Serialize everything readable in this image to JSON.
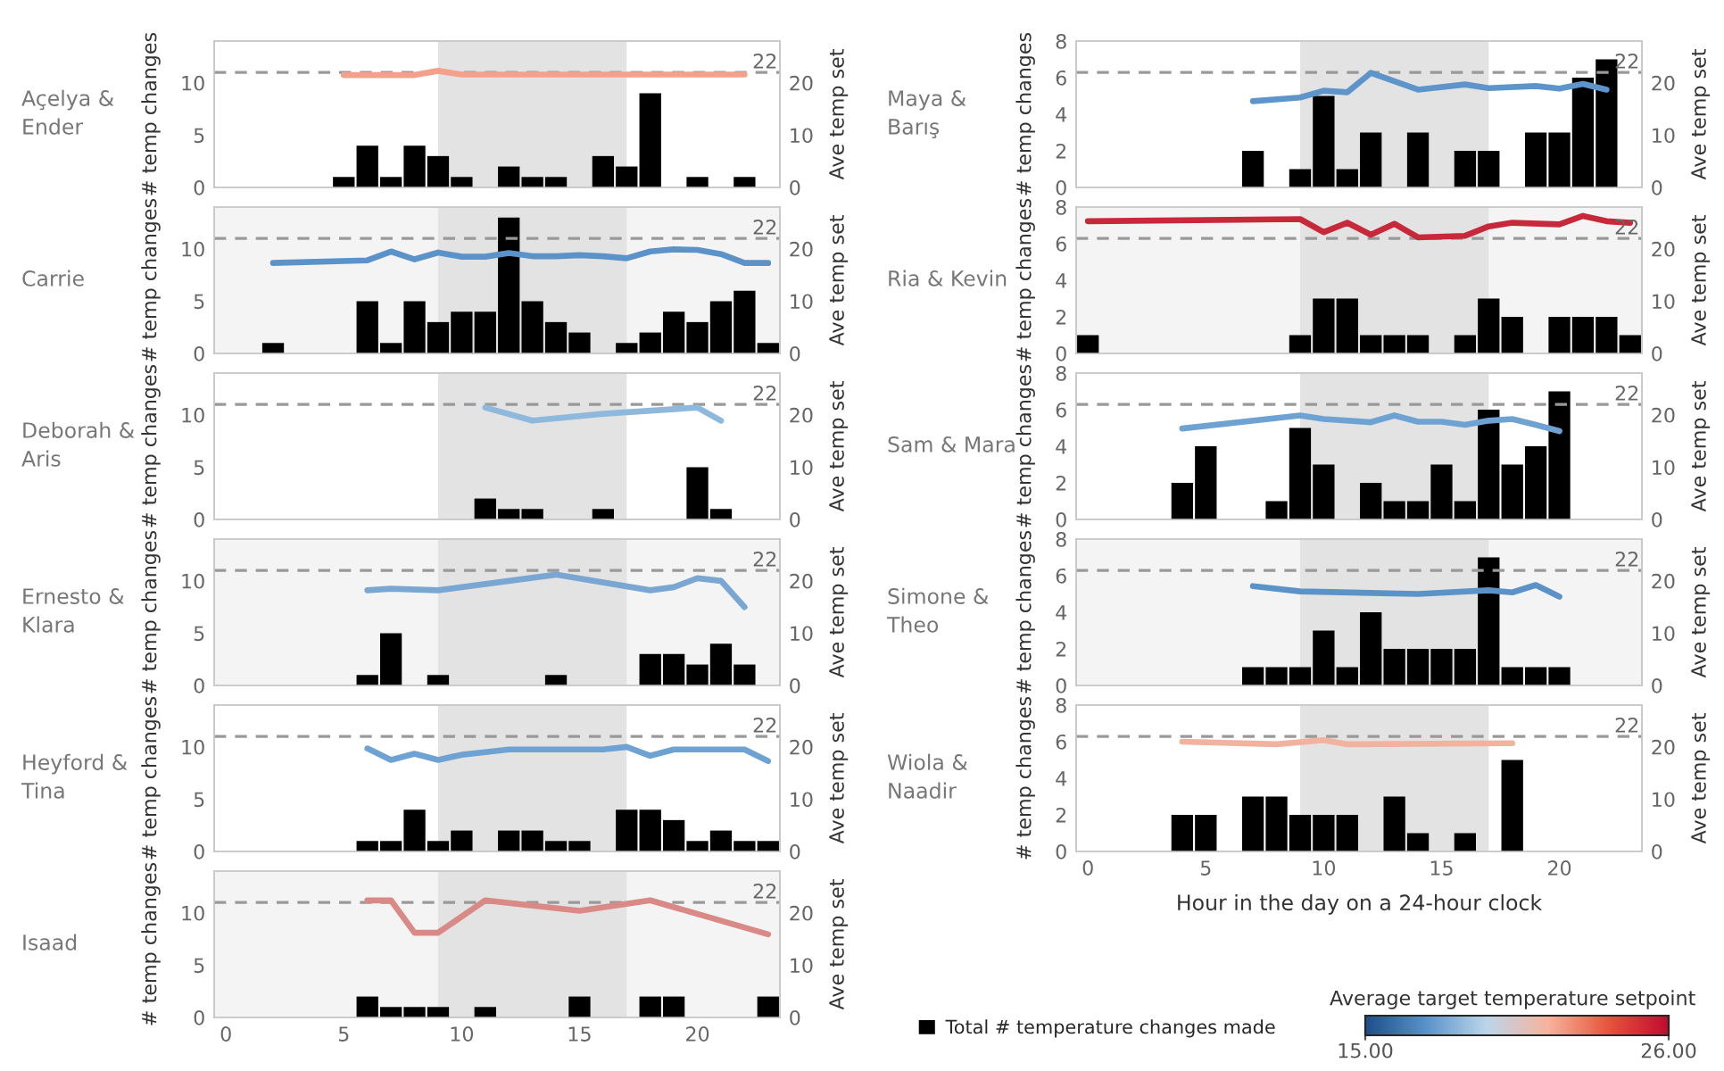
{
  "chart_data": [
    {
      "type": "bar",
      "title": "Açelya & Ender",
      "ylabel": "# temp changes",
      "y2label": "Ave temp set",
      "xlim": [
        -0.5,
        23.5
      ],
      "xticks": [
        0,
        5,
        10,
        15,
        20
      ],
      "ylim": [
        0,
        14
      ],
      "yticks": [
        0,
        5,
        10
      ],
      "y2lim": [
        0,
        28
      ],
      "y2ticks": [
        0,
        10,
        20
      ],
      "tick_labels": "y",
      "bands": [
        {
          "axis": "x",
          "from": 9,
          "to": 17,
          "color": "#e3e3e3"
        }
      ],
      "ref_lines": [
        {
          "axis": "y2",
          "value": 22,
          "label": "22",
          "color": "#999999",
          "line_style": "dashed"
        }
      ],
      "series": [
        {
          "color": "#000000",
          "x": [
            5,
            6,
            7,
            8,
            9,
            10,
            12,
            13,
            14,
            16,
            17,
            18,
            20,
            22
          ],
          "values": [
            1,
            4,
            1,
            4,
            3,
            1,
            2,
            1,
            1,
            3,
            2,
            9,
            1,
            1
          ]
        },
        {
          "type": "line",
          "axis": "y2",
          "color": "#f4a08a",
          "x": [
            5,
            8,
            9,
            10,
            22
          ],
          "values": [
            21.5,
            21.5,
            22.3,
            21.6,
            21.6
          ]
        }
      ]
    },
    {
      "type": "bar",
      "title": "Carrie",
      "ylabel": "# temp changes",
      "y2label": "Ave temp set",
      "xlim": [
        -0.5,
        23.5
      ],
      "xticks": [
        0,
        5,
        10,
        15,
        20
      ],
      "ylim": [
        0,
        14
      ],
      "yticks": [
        0,
        5,
        10
      ],
      "y2lim": [
        0,
        28
      ],
      "y2ticks": [
        0,
        10,
        20
      ],
      "tick_labels": "y",
      "bands": [
        {
          "axis": "x",
          "from": 9,
          "to": 17,
          "color": "#e3e3e3"
        }
      ],
      "ref_lines": [
        {
          "axis": "y2",
          "value": 22,
          "label": "22",
          "color": "#999999",
          "line_style": "dashed"
        }
      ],
      "series": [
        {
          "color": "#000000",
          "x": [
            2,
            6,
            7,
            8,
            9,
            10,
            11,
            12,
            13,
            14,
            15,
            17,
            18,
            19,
            20,
            21,
            22,
            23
          ],
          "values": [
            1,
            5,
            1,
            5,
            3,
            4,
            4,
            13,
            5,
            3,
            2,
            1,
            2,
            4,
            3,
            5,
            6,
            1
          ]
        },
        {
          "type": "line",
          "axis": "y2",
          "color": "#5b93c9",
          "x": [
            2,
            6,
            7,
            8,
            9,
            10,
            11,
            12,
            13,
            14,
            15,
            16,
            17,
            18,
            19,
            20,
            21,
            22,
            23
          ],
          "values": [
            17.3,
            17.8,
            19.5,
            18,
            19.3,
            18.5,
            18.5,
            19.2,
            18.6,
            18.6,
            18.8,
            18.6,
            18.2,
            19.5,
            19.9,
            19.8,
            19,
            17.3,
            17.3
          ]
        }
      ]
    },
    {
      "type": "bar",
      "title": "Deborah & Aris",
      "ylabel": "# temp changes",
      "y2label": "Ave temp set",
      "xlim": [
        -0.5,
        23.5
      ],
      "xticks": [
        0,
        5,
        10,
        15,
        20
      ],
      "ylim": [
        0,
        14
      ],
      "yticks": [
        0,
        5,
        10
      ],
      "y2lim": [
        0,
        28
      ],
      "y2ticks": [
        0,
        10,
        20
      ],
      "tick_labels": "y",
      "bands": [
        {
          "axis": "x",
          "from": 9,
          "to": 17,
          "color": "#e3e3e3"
        }
      ],
      "ref_lines": [
        {
          "axis": "y2",
          "value": 22,
          "label": "22",
          "color": "#999999",
          "line_style": "dashed"
        }
      ],
      "series": [
        {
          "color": "#000000",
          "x": [
            11,
            12,
            13,
            16,
            20,
            21
          ],
          "values": [
            2,
            1,
            1,
            1,
            5,
            1
          ]
        },
        {
          "type": "line",
          "axis": "y2",
          "color": "#8fb9dc",
          "x": [
            11,
            13,
            16,
            20,
            21
          ],
          "values": [
            21.4,
            18.9,
            20.2,
            21.4,
            18.9
          ]
        }
      ]
    },
    {
      "type": "bar",
      "title": "Ernesto & Klara",
      "ylabel": "# temp changes",
      "y2label": "Ave temp set",
      "xlim": [
        -0.5,
        23.5
      ],
      "xticks": [
        0,
        5,
        10,
        15,
        20
      ],
      "ylim": [
        0,
        14
      ],
      "yticks": [
        0,
        5,
        10
      ],
      "y2lim": [
        0,
        28
      ],
      "y2ticks": [
        0,
        10,
        20
      ],
      "tick_labels": "y",
      "bands": [
        {
          "axis": "x",
          "from": 9,
          "to": 17,
          "color": "#e3e3e3"
        }
      ],
      "ref_lines": [
        {
          "axis": "y2",
          "value": 22,
          "label": "22",
          "color": "#999999",
          "line_style": "dashed"
        }
      ],
      "series": [
        {
          "color": "#000000",
          "x": [
            6,
            7,
            9,
            14,
            18,
            19,
            20,
            21,
            22
          ],
          "values": [
            1,
            5,
            1,
            1,
            3,
            3,
            2,
            4,
            2
          ]
        },
        {
          "type": "line",
          "axis": "y2",
          "color": "#7aa6d2",
          "x": [
            6,
            7,
            9,
            14,
            18,
            19,
            20,
            21,
            22
          ],
          "values": [
            18.2,
            18.5,
            18.2,
            21.2,
            18.2,
            18.8,
            20.5,
            20,
            15
          ]
        }
      ]
    },
    {
      "type": "bar",
      "title": "Heyford & Tina",
      "ylabel": "# temp changes",
      "y2label": "Ave temp set",
      "xlim": [
        -0.5,
        23.5
      ],
      "xticks": [
        0,
        5,
        10,
        15,
        20
      ],
      "ylim": [
        0,
        14
      ],
      "yticks": [
        0,
        5,
        10
      ],
      "y2lim": [
        0,
        28
      ],
      "y2ticks": [
        0,
        10,
        20
      ],
      "tick_labels": "y",
      "bands": [
        {
          "axis": "x",
          "from": 9,
          "to": 17,
          "color": "#e3e3e3"
        }
      ],
      "ref_lines": [
        {
          "axis": "y2",
          "value": 22,
          "label": "22",
          "color": "#999999",
          "line_style": "dashed"
        }
      ],
      "series": [
        {
          "color": "#000000",
          "x": [
            6,
            7,
            8,
            9,
            10,
            12,
            13,
            14,
            15,
            17,
            18,
            19,
            20,
            21,
            22,
            23
          ],
          "values": [
            1,
            1,
            4,
            1,
            2,
            2,
            2,
            1,
            1,
            4,
            4,
            3,
            1,
            2,
            1,
            1
          ]
        },
        {
          "type": "line",
          "axis": "y2",
          "color": "#6ea2d3",
          "x": [
            6,
            7,
            8,
            9,
            10,
            11,
            12,
            16,
            17,
            18,
            19,
            22,
            23
          ],
          "values": [
            19.7,
            17.5,
            18.7,
            17.5,
            18.5,
            19,
            19.5,
            19.5,
            20,
            18.3,
            19.5,
            19.5,
            17.3
          ]
        }
      ]
    },
    {
      "type": "bar",
      "title": "Isaad",
      "ylabel": "# temp changes",
      "y2label": "Ave temp set",
      "xlim": [
        -0.5,
        23.5
      ],
      "xticks": [
        0,
        5,
        10,
        15,
        20
      ],
      "ylim": [
        0,
        14
      ],
      "yticks": [
        0,
        5,
        10
      ],
      "y2lim": [
        0,
        28
      ],
      "y2ticks": [
        0,
        10,
        20
      ],
      "bands": [
        {
          "axis": "x",
          "from": 9,
          "to": 17,
          "color": "#e3e3e3"
        }
      ],
      "ref_lines": [
        {
          "axis": "y2",
          "value": 22,
          "label": "22",
          "color": "#999999",
          "line_style": "dashed"
        }
      ],
      "series": [
        {
          "color": "#000000",
          "x": [
            6,
            7,
            8,
            9,
            11,
            15,
            18,
            19,
            23
          ],
          "values": [
            2,
            1,
            1,
            1,
            1,
            2,
            2,
            2,
            2
          ]
        },
        {
          "type": "line",
          "axis": "y2",
          "color": "#d98a86",
          "x": [
            6,
            7,
            8,
            9,
            11,
            15,
            18,
            23
          ],
          "values": [
            22.4,
            22.4,
            16.2,
            16.2,
            22.4,
            20.4,
            22.4,
            15.9
          ]
        }
      ]
    },
    {
      "type": "bar",
      "title": "Maya & Barış",
      "ylabel": "# temp changes",
      "y2label": "Ave temp set",
      "xlim": [
        -0.5,
        23.5
      ],
      "xticks": [
        0,
        5,
        10,
        15,
        20
      ],
      "ylim": [
        0,
        8
      ],
      "yticks": [
        0,
        2,
        4,
        6,
        8
      ],
      "y2lim": [
        0,
        28
      ],
      "y2ticks": [
        0,
        10,
        20
      ],
      "tick_labels": "y",
      "bands": [
        {
          "axis": "x",
          "from": 9,
          "to": 17,
          "color": "#e3e3e3"
        }
      ],
      "ref_lines": [
        {
          "axis": "y2",
          "value": 22,
          "label": "22",
          "color": "#999999",
          "line_style": "dashed"
        }
      ],
      "series": [
        {
          "color": "#000000",
          "x": [
            7,
            9,
            10,
            11,
            12,
            14,
            16,
            17,
            19,
            20,
            21,
            22
          ],
          "values": [
            2,
            1,
            5,
            1,
            3,
            3,
            2,
            2,
            3,
            3,
            6,
            7
          ]
        },
        {
          "type": "line",
          "axis": "y2",
          "color": "#5d95ca",
          "x": [
            7,
            9,
            10,
            11,
            12,
            14,
            16,
            17,
            19,
            20,
            21,
            22
          ],
          "values": [
            16.5,
            17.2,
            18.5,
            18.2,
            21.9,
            18.7,
            19.7,
            19,
            19.4,
            18.9,
            19.8,
            18.7
          ]
        }
      ]
    },
    {
      "type": "bar",
      "title": "Ria & Kevin",
      "ylabel": "# temp changes",
      "y2label": "Ave temp set",
      "xlim": [
        -0.5,
        23.5
      ],
      "xticks": [
        0,
        5,
        10,
        15,
        20
      ],
      "ylim": [
        0,
        8
      ],
      "yticks": [
        0,
        2,
        4,
        6,
        8
      ],
      "y2lim": [
        0,
        28
      ],
      "y2ticks": [
        0,
        10,
        20
      ],
      "tick_labels": "y",
      "bands": [
        {
          "axis": "x",
          "from": 9,
          "to": 17,
          "color": "#e3e3e3"
        }
      ],
      "ref_lines": [
        {
          "axis": "y2",
          "value": 22,
          "label": "22",
          "color": "#999999",
          "line_style": "dashed"
        }
      ],
      "series": [
        {
          "color": "#000000",
          "x": [
            0,
            9,
            10,
            11,
            12,
            13,
            14,
            16,
            17,
            18,
            20,
            21,
            22,
            23
          ],
          "values": [
            1,
            1,
            3,
            3,
            1,
            1,
            1,
            1,
            3,
            2,
            2,
            2,
            2,
            1
          ]
        },
        {
          "type": "line",
          "axis": "y2",
          "color": "#c7283a",
          "x": [
            0,
            9,
            10,
            11,
            12,
            13,
            14,
            16,
            17,
            18,
            20,
            21,
            22,
            23
          ],
          "values": [
            25.3,
            25.7,
            23.2,
            25,
            22.7,
            24.8,
            22.2,
            22.5,
            24.3,
            25,
            24.7,
            26.3,
            25.3,
            25
          ]
        }
      ]
    },
    {
      "type": "bar",
      "title": "Sam & Mara",
      "ylabel": "# temp changes",
      "y2label": "Ave temp set",
      "xlim": [
        -0.5,
        23.5
      ],
      "xticks": [
        0,
        5,
        10,
        15,
        20
      ],
      "ylim": [
        0,
        8
      ],
      "yticks": [
        0,
        2,
        4,
        6,
        8
      ],
      "y2lim": [
        0,
        28
      ],
      "y2ticks": [
        0,
        10,
        20
      ],
      "tick_labels": "y",
      "bands": [
        {
          "axis": "x",
          "from": 9,
          "to": 17,
          "color": "#e3e3e3"
        }
      ],
      "ref_lines": [
        {
          "axis": "y2",
          "value": 22,
          "label": "22",
          "color": "#999999",
          "line_style": "dashed"
        }
      ],
      "series": [
        {
          "color": "#000000",
          "x": [
            4,
            5,
            8,
            9,
            10,
            12,
            13,
            14,
            15,
            16,
            17,
            18,
            19,
            20
          ],
          "values": [
            2,
            4,
            1,
            5,
            3,
            2,
            1,
            1,
            3,
            1,
            6,
            3,
            4,
            7
          ]
        },
        {
          "type": "line",
          "axis": "y2",
          "color": "#6ea2d3",
          "x": [
            4,
            9,
            10,
            12,
            13,
            14,
            15,
            16,
            17,
            18,
            19,
            20
          ],
          "values": [
            17.4,
            19.9,
            19.2,
            18.6,
            19.9,
            18.7,
            18.7,
            18.1,
            18.9,
            19.2,
            18.1,
            16.9
          ]
        }
      ]
    },
    {
      "type": "bar",
      "title": "Simone & Theo",
      "ylabel": "# temp changes",
      "y2label": "Ave temp set",
      "xlim": [
        -0.5,
        23.5
      ],
      "xticks": [
        0,
        5,
        10,
        15,
        20
      ],
      "ylim": [
        0,
        8
      ],
      "yticks": [
        0,
        2,
        4,
        6,
        8
      ],
      "y2lim": [
        0,
        28
      ],
      "y2ticks": [
        0,
        10,
        20
      ],
      "tick_labels": "y",
      "bands": [
        {
          "axis": "x",
          "from": 9,
          "to": 17,
          "color": "#e3e3e3"
        }
      ],
      "ref_lines": [
        {
          "axis": "y2",
          "value": 22,
          "label": "22",
          "color": "#999999",
          "line_style": "dashed"
        }
      ],
      "series": [
        {
          "color": "#000000",
          "x": [
            7,
            8,
            9,
            10,
            11,
            12,
            13,
            14,
            15,
            16,
            17,
            18,
            19,
            20
          ],
          "values": [
            1,
            1,
            1,
            3,
            1,
            4,
            2,
            2,
            2,
            2,
            7,
            1,
            1,
            1
          ]
        },
        {
          "type": "line",
          "axis": "y2",
          "color": "#5b93c9",
          "x": [
            7,
            9,
            14,
            17,
            18,
            19,
            20
          ],
          "values": [
            19,
            18,
            17.5,
            18.2,
            17.8,
            19.2,
            17
          ]
        }
      ]
    },
    {
      "type": "bar",
      "title": "Wiola & Naadir",
      "xlabel": "Hour in the day on a 24-hour clock",
      "ylabel": "# temp changes",
      "y2label": "Ave temp set",
      "xlim": [
        -0.5,
        23.5
      ],
      "xticks": [
        0,
        5,
        10,
        15,
        20
      ],
      "ylim": [
        0,
        8
      ],
      "yticks": [
        0,
        2,
        4,
        6,
        8
      ],
      "y2lim": [
        0,
        28
      ],
      "y2ticks": [
        0,
        10,
        20
      ],
      "bands": [
        {
          "axis": "x",
          "from": 9,
          "to": 17,
          "color": "#e3e3e3"
        }
      ],
      "ref_lines": [
        {
          "axis": "y2",
          "value": 22,
          "label": "22",
          "color": "#999999",
          "line_style": "dashed"
        }
      ],
      "legend": "bottom",
      "clabel": "Average target temperature setpoint",
      "clim": [
        15,
        26
      ],
      "cticks": [
        {
          "value": 15,
          "label": "15.00"
        },
        {
          "value": 26,
          "label": "26.00"
        }
      ],
      "series": [
        {
          "name": "Total # temperature changes made",
          "color": "#000000",
          "x": [
            4,
            5,
            7,
            8,
            9,
            10,
            11,
            13,
            14,
            16,
            18
          ],
          "values": [
            2,
            2,
            3,
            3,
            2,
            2,
            2,
            3,
            1,
            1,
            5
          ]
        },
        {
          "type": "line",
          "axis": "y2",
          "color": "#f2b2a0",
          "x": [
            4,
            8,
            10,
            11,
            18
          ],
          "values": [
            21,
            20.5,
            21.3,
            20.5,
            20.7
          ]
        }
      ]
    }
  ]
}
